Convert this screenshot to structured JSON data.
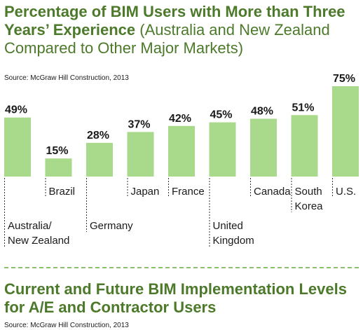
{
  "header": {
    "title_bold": "Percentage of BIM Users with More than Three Years’ Experience",
    "title_light": "(Australia and New Zealand Compared to Other Major Markets)",
    "source": "Source: McGraw Hill Construction, 2013"
  },
  "footer": {
    "title": "Current and Future BIM Implementation Levels for A/E and Contractor Users",
    "source": "Source: McGraw Hill Construction, 2013"
  },
  "colors": {
    "bar": "#a9d98a",
    "title": "#4c7a2a",
    "divider": "#8cc06a"
  },
  "chart_data": {
    "type": "bar",
    "categories": [
      "Australia/\nNew Zealand",
      "Brazil",
      "Germany",
      "Japan",
      "France",
      "United\nKingdom",
      "Canada",
      "South\nKorea",
      "U.S."
    ],
    "values": [
      49,
      15,
      28,
      37,
      42,
      45,
      48,
      51,
      75
    ],
    "value_labels": [
      "49%",
      "15%",
      "28%",
      "37%",
      "42%",
      "45%",
      "48%",
      "51%",
      "75%"
    ],
    "ylim": [
      0,
      100
    ],
    "grid": false,
    "legend": "none"
  }
}
